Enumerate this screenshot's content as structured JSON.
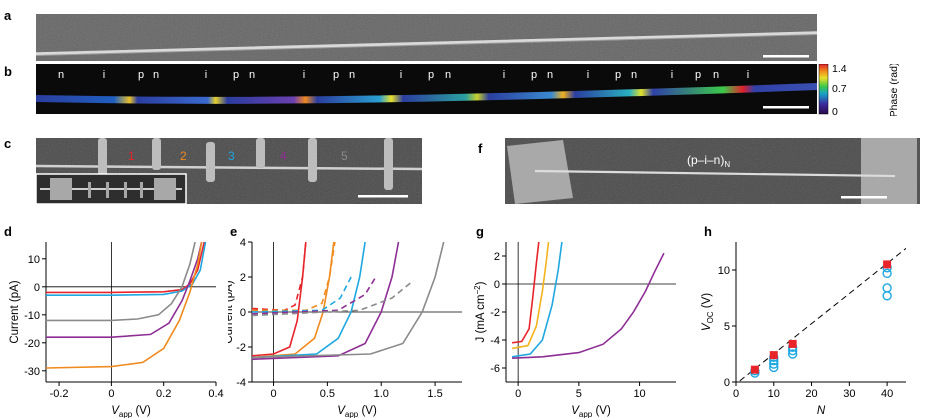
{
  "panel_letters": [
    "a",
    "b",
    "c",
    "d",
    "e",
    "f",
    "g",
    "h"
  ],
  "panel_b": {
    "segment_labels": [
      "n",
      "i",
      "p",
      "n",
      "i",
      "p",
      "n",
      "i",
      "p",
      "n",
      "i",
      "p",
      "n",
      "i",
      "p",
      "n",
      "i",
      "p",
      "n",
      "i",
      "p",
      "n",
      "i"
    ],
    "colorbar": {
      "ticks": [
        "1.4",
        "0.7",
        "0"
      ],
      "label": "Phase (rad)"
    }
  },
  "panel_c": {
    "device_labels": [
      "1",
      "2",
      "3",
      "4",
      "5"
    ],
    "device_colors": [
      "#e8242a",
      "#f08a1e",
      "#1ea7e1",
      "#8e2e95",
      "#8a8a8a"
    ]
  },
  "panel_f": {
    "label_main": "(p–i–n)",
    "label_sub": "N"
  },
  "series_colors": {
    "red": "#e8242a",
    "orange": "#f08a1e",
    "blue": "#1ea7e1",
    "purple": "#8e2e95",
    "grey": "#8a8a8a",
    "yellow": "#f2b31d"
  },
  "chart_data": [
    {
      "id": "d",
      "type": "line",
      "xlabel_main": "V",
      "xlabel_sub": "app",
      "xlabel_unit": " (V)",
      "ylabel": "Current (pA)",
      "xlim": [
        -0.25,
        0.4
      ],
      "ylim": [
        -34,
        16
      ],
      "xticks": [
        "-0.2",
        "0",
        "0.2",
        "0.4"
      ],
      "xtick_values": [
        -0.2,
        0,
        0.2,
        0.4
      ],
      "yticks": [
        "10",
        "0",
        "-10",
        "-20",
        "-30"
      ],
      "ytick_values": [
        10,
        0,
        -10,
        -20,
        -30
      ],
      "series": [
        {
          "color": "#e8242a",
          "points": [
            [
              -0.25,
              -2
            ],
            [
              0,
              -2
            ],
            [
              0.2,
              -1.8
            ],
            [
              0.27,
              -1
            ],
            [
              0.3,
              1
            ],
            [
              0.33,
              6
            ],
            [
              0.355,
              16
            ]
          ]
        },
        {
          "color": "#1ea7e1",
          "points": [
            [
              -0.25,
              -3
            ],
            [
              0,
              -3
            ],
            [
              0.2,
              -2.7
            ],
            [
              0.27,
              -1.5
            ],
            [
              0.31,
              1
            ],
            [
              0.34,
              6
            ],
            [
              0.36,
              16
            ]
          ]
        },
        {
          "color": "#8a8a8a",
          "points": [
            [
              -0.25,
              -12
            ],
            [
              0,
              -12
            ],
            [
              0.1,
              -11.5
            ],
            [
              0.18,
              -10
            ],
            [
              0.23,
              -6
            ],
            [
              0.27,
              0
            ],
            [
              0.3,
              8
            ],
            [
              0.32,
              16
            ]
          ]
        },
        {
          "color": "#8e2e95",
          "points": [
            [
              -0.25,
              -18
            ],
            [
              0,
              -18
            ],
            [
              0.15,
              -17
            ],
            [
              0.22,
              -13
            ],
            [
              0.27,
              -5
            ],
            [
              0.3,
              2
            ],
            [
              0.33,
              10
            ],
            [
              0.345,
              16
            ]
          ]
        },
        {
          "color": "#f08a1e",
          "points": [
            [
              -0.25,
              -29
            ],
            [
              0,
              -28.5
            ],
            [
              0.12,
              -27
            ],
            [
              0.2,
              -22
            ],
            [
              0.26,
              -12
            ],
            [
              0.3,
              -2
            ],
            [
              0.33,
              8
            ],
            [
              0.345,
              16
            ]
          ]
        }
      ]
    },
    {
      "id": "e",
      "type": "line",
      "xlabel_main": "V",
      "xlabel_sub": "app",
      "xlabel_unit": " (V)",
      "ylabel": "Current (pA)",
      "xlim": [
        -0.2,
        1.75
      ],
      "ylim": [
        -4,
        4
      ],
      "xticks": [
        "0",
        "0.5",
        "1.0",
        "1.5"
      ],
      "xtick_values": [
        0,
        0.5,
        1.0,
        1.5
      ],
      "yticks": [
        "4",
        "2",
        "0",
        "-2",
        "-4"
      ],
      "ytick_values": [
        4,
        2,
        0,
        -2,
        -4
      ],
      "series": [
        {
          "color": "#e8242a",
          "dashed": false,
          "points": [
            [
              -0.2,
              -2.5
            ],
            [
              0,
              -2.4
            ],
            [
              0.15,
              -2
            ],
            [
              0.22,
              -0.5
            ],
            [
              0.27,
              2
            ],
            [
              0.3,
              4
            ]
          ]
        },
        {
          "color": "#f08a1e",
          "dashed": false,
          "points": [
            [
              -0.2,
              -2.6
            ],
            [
              0.2,
              -2.4
            ],
            [
              0.38,
              -1.5
            ],
            [
              0.46,
              0
            ],
            [
              0.52,
              2
            ],
            [
              0.56,
              4
            ]
          ]
        },
        {
          "color": "#1ea7e1",
          "dashed": false,
          "points": [
            [
              -0.2,
              -2.6
            ],
            [
              0.4,
              -2.4
            ],
            [
              0.6,
              -1.5
            ],
            [
              0.72,
              0
            ],
            [
              0.8,
              2
            ],
            [
              0.85,
              4
            ]
          ]
        },
        {
          "color": "#8e2e95",
          "dashed": false,
          "points": [
            [
              -0.2,
              -2.7
            ],
            [
              0.6,
              -2.5
            ],
            [
              0.85,
              -1.8
            ],
            [
              1.0,
              0
            ],
            [
              1.1,
              2
            ],
            [
              1.16,
              4
            ]
          ]
        },
        {
          "color": "#8a8a8a",
          "dashed": false,
          "points": [
            [
              -0.2,
              -2.6
            ],
            [
              0.9,
              -2.4
            ],
            [
              1.2,
              -1.8
            ],
            [
              1.38,
              0
            ],
            [
              1.5,
              2
            ],
            [
              1.58,
              4
            ]
          ]
        },
        {
          "color": "#e8242a",
          "dashed": true,
          "points": [
            [
              -0.2,
              0.2
            ],
            [
              0.1,
              0.1
            ],
            [
              0.2,
              0.4
            ],
            [
              0.27,
              2
            ],
            [
              0.3,
              4
            ]
          ]
        },
        {
          "color": "#f08a1e",
          "dashed": true,
          "points": [
            [
              -0.2,
              0.1
            ],
            [
              0.3,
              0.1
            ],
            [
              0.45,
              0.5
            ],
            [
              0.52,
              2
            ],
            [
              0.57,
              4
            ]
          ]
        },
        {
          "color": "#1ea7e1",
          "dashed": true,
          "points": [
            [
              -0.2,
              0
            ],
            [
              0.45,
              0.1
            ],
            [
              0.62,
              0.8
            ],
            [
              0.72,
              2
            ]
          ]
        },
        {
          "color": "#8e2e95",
          "dashed": true,
          "points": [
            [
              -0.2,
              -0.1
            ],
            [
              0.6,
              0.1
            ],
            [
              0.85,
              1
            ],
            [
              0.95,
              2
            ]
          ]
        },
        {
          "color": "#8a8a8a",
          "dashed": true,
          "points": [
            [
              -0.2,
              -0.2
            ],
            [
              0.8,
              0.1
            ],
            [
              1.1,
              0.8
            ],
            [
              1.3,
              1.8
            ]
          ]
        }
      ]
    },
    {
      "id": "g",
      "type": "line",
      "xlabel_main": "V",
      "xlabel_sub": "app",
      "xlabel_unit": " (V)",
      "ylabel_main": "J (mA cm",
      "ylabel_sup": "−2",
      "ylabel_end": ")",
      "xlim": [
        -1,
        13
      ],
      "ylim": [
        -7,
        3
      ],
      "xticks": [
        "0",
        "5",
        "10"
      ],
      "xtick_values": [
        0,
        5,
        10
      ],
      "yticks": [
        "2",
        "0",
        "-2",
        "-4",
        "-6"
      ],
      "ytick_values": [
        2,
        0,
        -2,
        -4,
        -6
      ],
      "series": [
        {
          "color": "#e8242a",
          "points": [
            [
              -0.5,
              -4.2
            ],
            [
              0.3,
              -4.1
            ],
            [
              0.9,
              -3.2
            ],
            [
              1.2,
              -1
            ],
            [
              1.5,
              1.5
            ],
            [
              1.7,
              3
            ]
          ]
        },
        {
          "color": "#f2b31d",
          "points": [
            [
              -0.5,
              -4.6
            ],
            [
              0.8,
              -4.4
            ],
            [
              1.5,
              -3
            ],
            [
              2,
              -0.5
            ],
            [
              2.3,
              1.5
            ],
            [
              2.5,
              3
            ]
          ]
        },
        {
          "color": "#1ea7e1",
          "points": [
            [
              -0.5,
              -5.2
            ],
            [
              1,
              -5
            ],
            [
              2,
              -4
            ],
            [
              2.8,
              -1.5
            ],
            [
              3.3,
              1
            ],
            [
              3.6,
              3
            ]
          ]
        },
        {
          "color": "#8e2e95",
          "points": [
            [
              -0.5,
              -5.3
            ],
            [
              2,
              -5.2
            ],
            [
              5,
              -4.9
            ],
            [
              7,
              -4.3
            ],
            [
              8.5,
              -3.2
            ],
            [
              9.5,
              -2
            ],
            [
              10.5,
              -0.5
            ],
            [
              11.2,
              0.8
            ],
            [
              12,
              2.2
            ]
          ]
        }
      ]
    },
    {
      "id": "h",
      "type": "scatter",
      "xlabel": "N",
      "ylabel_main": "V",
      "ylabel_sub": "OC",
      "ylabel_unit": " (V)",
      "xlim": [
        0,
        45
      ],
      "ylim": [
        0,
        12.5
      ],
      "xticks": [
        "0",
        "10",
        "20",
        "30",
        "40"
      ],
      "xtick_values": [
        0,
        10,
        20,
        30,
        40
      ],
      "yticks": [
        "0",
        "5",
        "10"
      ],
      "ytick_values": [
        0,
        5,
        10
      ],
      "fit_line": [
        [
          1,
          0.1
        ],
        [
          46,
          12.2
        ]
      ],
      "measured_open_circles": [
        [
          5,
          0.8
        ],
        [
          5,
          1.0
        ],
        [
          10,
          1.3
        ],
        [
          10,
          1.6
        ],
        [
          10,
          1.9
        ],
        [
          10,
          2.2
        ],
        [
          15,
          2.5
        ],
        [
          15,
          2.8
        ],
        [
          15,
          3.1
        ],
        [
          40,
          7.7
        ],
        [
          40,
          8.4
        ],
        [
          40,
          9.7
        ],
        [
          40,
          10.2
        ]
      ],
      "highest_red_squares": [
        [
          5,
          1.1
        ],
        [
          10,
          2.4
        ],
        [
          15,
          3.4
        ],
        [
          40,
          10.5
        ]
      ]
    }
  ]
}
